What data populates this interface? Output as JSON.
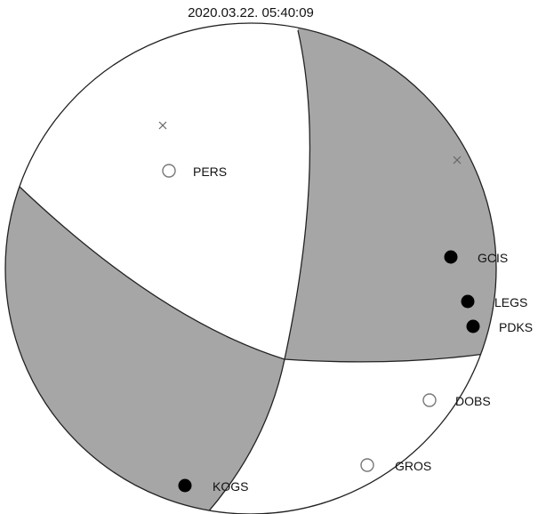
{
  "title": "2020.03.22. 05:40:09",
  "colors": {
    "compressional": "#a6a6a6",
    "dilatational": "#ffffff",
    "outline": "#222222",
    "axis_marker": "#666666"
  },
  "stations": [
    {
      "name": "PERS",
      "polarity": "dilatational"
    },
    {
      "name": "GCIS",
      "polarity": "compressional"
    },
    {
      "name": "LEGS",
      "polarity": "compressional"
    },
    {
      "name": "PDKS",
      "polarity": "compressional"
    },
    {
      "name": "DOBS",
      "polarity": "dilatational"
    },
    {
      "name": "GROS",
      "polarity": "dilatational"
    },
    {
      "name": "KOGS",
      "polarity": "compressional"
    }
  ],
  "axis_markers": [
    "x-mark",
    "x-mark"
  ]
}
